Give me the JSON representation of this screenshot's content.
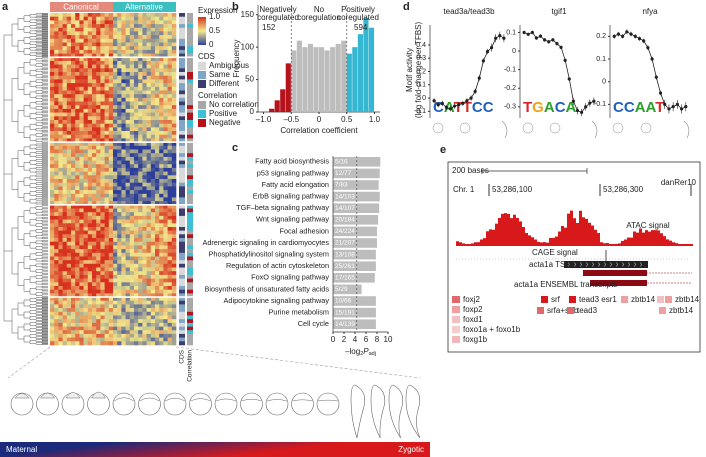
{
  "panel_labels": [
    "a",
    "b",
    "c",
    "d",
    "e"
  ],
  "panel_a": {
    "headers": [
      "Canonical",
      "Alternative"
    ],
    "header_colors": [
      "#e38a7c",
      "#3dbfc0"
    ],
    "expression_title": "Expression",
    "expression_ticks": [
      {
        "value": 1,
        "label": "1.0"
      },
      0.5,
      0
    ],
    "cds_title": "CDS",
    "cds_items": [
      "Ambiguous",
      "Same",
      "Different"
    ],
    "cds_colors": [
      "#d9d9d9",
      "#7fa6c9",
      "#3c3c6e"
    ],
    "correlation_title": "Correlation",
    "correlation_items": [
      "No correlation",
      "Positive",
      "Negative"
    ],
    "correlation_colors": [
      "#a8a8a8",
      "#3dbfd6",
      "#b5121b"
    ],
    "column_labels": [
      "CDS",
      "Correlation"
    ],
    "timeline": [
      "Maternal",
      "Zygotic"
    ]
  },
  "panel_d_ylabel": [
    "Motif activity",
    "(log fold-change per TFBS)"
  ],
  "panel_e": {
    "scale": "200 bases",
    "assembly": "danRer10",
    "chrom": "Chr. 1",
    "coords": [
      "53,286,100",
      "53,286,300"
    ],
    "tracks": [
      "ATAC signal",
      "CAGE signal",
      "acta1a TSR",
      "acta1a ENSEMBL transcripts"
    ],
    "motifs_left": [
      "foxj2",
      "foxp2",
      "foxd1",
      "foxo1a + foxo1b",
      "foxg1b"
    ],
    "motifs_mid": [
      "srf",
      "tead3 esr1",
      "zbtb14",
      "zbtb14",
      "srfa+srfb",
      "tead3",
      "zbtb14"
    ]
  },
  "chart_data": [
    {
      "type": "histogram",
      "ylabel": "Frequency",
      "xlabel": "Correlation coefficient",
      "bins": [
        -0.9,
        -0.8,
        -0.7,
        -0.6,
        -0.5,
        -0.4,
        -0.3,
        -0.2,
        -0.1,
        0,
        0.1,
        0.2,
        0.3,
        0.4,
        0.5,
        0.6,
        0.7,
        0.8,
        0.9,
        1.0
      ],
      "counts": [
        5,
        18,
        35,
        75,
        95,
        110,
        100,
        105,
        100,
        100,
        95,
        100,
        105,
        110,
        90,
        100,
        120,
        145,
        130
      ],
      "thresholds": [
        -0.5,
        0.5
      ],
      "colors": [
        "#b5121b",
        "#bdbdbd",
        "#35b6d1"
      ],
      "xlim": [
        -1.1,
        1.1
      ],
      "ylim": [
        0,
        165
      ],
      "xticks": [
        {
          "value": -1,
          "label": "–1.0"
        },
        {
          "value": -0.5,
          "label": "–0.5"
        },
        0,
        0.5,
        {
          "value": 1,
          "label": "1.0"
        }
      ],
      "yticks": [
        0,
        50,
        100,
        150
      ],
      "annotations": [
        [
          "Negatively",
          "coregulated"
        ],
        [
          "No",
          "coregulation"
        ],
        [
          "Positively",
          "coregulated"
        ]
      ],
      "group_counts": [
        152,
        594
      ]
    },
    {
      "type": "hbar",
      "categories": [
        "Fatty acid biosynthesis",
        "p53 signaling pathway",
        "Fatty acid elongation",
        "ErbB signaling pathway",
        "TGF–beta signaling pathway",
        "Wnt signaling pathway",
        "Focal adhesion",
        "Adrenergic signaling in cardiomyocytes",
        "Phosphatidylinositol signaling system",
        "Regulation of actin cytoskeleton",
        "FoxO signaling pathway",
        "Biosynthesis of unsaturated fatty acids",
        "Adipocytokine signaling pathway",
        "Purine metabolism",
        "Cell cycle"
      ],
      "values": [
        8.6,
        8.5,
        8.3,
        8.5,
        8.4,
        8.2,
        8.0,
        8.0,
        7.8,
        7.8,
        7.6,
        5.2,
        7.8,
        7.8,
        7.8
      ],
      "bar_labels": [
        "5/16",
        "12/77",
        "7/83",
        "14/103",
        "14/107",
        "20/184",
        "24/224",
        "21/207",
        "13/108",
        "25/261",
        "17/165",
        "5/29",
        "10/66",
        "15/191",
        "14/139"
      ],
      "color": "#bdbdbd",
      "threshold": 4.32,
      "xlim": [
        0,
        10
      ],
      "xticks": [
        0,
        2,
        4,
        6,
        8,
        10
      ],
      "xlabel": [
        "–log",
        "2",
        "P",
        "adj"
      ]
    },
    {
      "type": "line",
      "title": "tead3a/tead3b",
      "motif": "CATTCC",
      "x": [
        1,
        2,
        3,
        4,
        5,
        6,
        7,
        8,
        9,
        10,
        11,
        12,
        13,
        14,
        15,
        16,
        17,
        18
      ],
      "xlim": [
        0,
        19
      ],
      "values": [
        -0.02,
        -0.05,
        -0.04,
        -0.07,
        -0.08,
        -0.06,
        -0.05,
        -0.04,
        -0.02,
        0.0,
        0.05,
        0.15,
        0.28,
        0.35,
        0.38,
        0.45,
        0.47,
        0.45
      ],
      "errors": [
        0.02,
        0.02,
        0.02,
        0.02,
        0.02,
        0.02,
        0.02,
        0.02,
        0.02,
        0.02,
        0.02,
        0.02,
        0.02,
        0.02,
        0.03,
        0.03,
        0.03,
        0.03
      ],
      "ylim": [
        -0.15,
        0.55
      ],
      "yticks": [
        -0.1,
        0,
        0.1,
        0.2,
        0.3,
        0.4
      ]
    },
    {
      "type": "line",
      "title": "tgif1",
      "motif": "TGACA",
      "x": [
        1,
        2,
        3,
        4,
        5,
        6,
        7,
        8,
        9,
        10,
        11,
        12,
        13,
        14,
        15,
        16,
        17,
        18
      ],
      "xlim": [
        0,
        19
      ],
      "values": [
        0.1,
        0.09,
        0.1,
        0.07,
        0.08,
        0.06,
        0.05,
        0.06,
        0.04,
        0.02,
        -0.05,
        -0.15,
        -0.27,
        -0.32,
        -0.33,
        -0.3,
        -0.28,
        -0.27
      ],
      "errors": [
        0.01,
        0.01,
        0.01,
        0.01,
        0.01,
        0.01,
        0.01,
        0.01,
        0.01,
        0.01,
        0.01,
        0.01,
        0.02,
        0.02,
        0.02,
        0.02,
        0.02,
        0.02
      ],
      "ylim": [
        -0.36,
        0.14
      ],
      "yticks": [
        -0.3,
        -0.2,
        -0.1,
        0,
        0.1
      ]
    },
    {
      "type": "line",
      "title": "nfya",
      "motif": "CCAAT",
      "x": [
        1,
        2,
        3,
        4,
        5,
        6,
        7,
        8,
        9,
        10,
        11,
        12,
        13,
        14,
        15,
        16,
        17,
        18
      ],
      "xlim": [
        0,
        19
      ],
      "values": [
        0.2,
        0.21,
        0.2,
        0.22,
        0.21,
        0.2,
        0.19,
        0.18,
        0.15,
        0.1,
        0.02,
        -0.05,
        -0.1,
        -0.12,
        -0.11,
        -0.1,
        -0.12,
        -0.11
      ],
      "errors": [
        0.01,
        0.01,
        0.01,
        0.01,
        0.01,
        0.01,
        0.01,
        0.01,
        0.01,
        0.01,
        0.01,
        0.01,
        0.02,
        0.02,
        0.02,
        0.02,
        0.02,
        0.02
      ],
      "ylim": [
        -0.16,
        0.25
      ],
      "yticks": [
        -0.1,
        0,
        0.1,
        0.2
      ]
    }
  ]
}
